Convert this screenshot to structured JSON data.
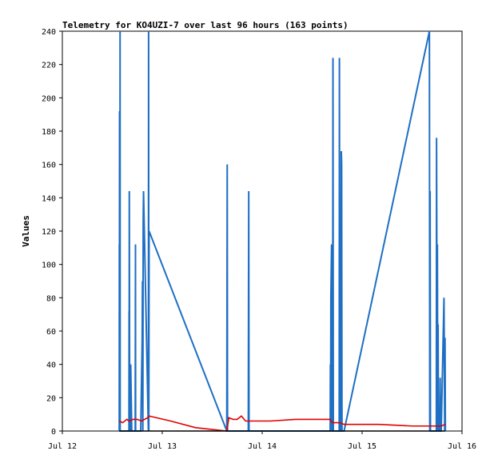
{
  "chart_data": {
    "type": "line",
    "title": "Telemetry for KO4UZI-7 over last 96 hours (163 points)",
    "xlabel": "",
    "ylabel": "Values",
    "xlim": [
      "Jul 12",
      "Jul 16"
    ],
    "ylim": [
      0,
      240
    ],
    "x_ticks": [
      "Jul 12",
      "Jul 13",
      "Jul 14",
      "Jul 15",
      "Jul 16"
    ],
    "y_ticks": [
      0,
      20,
      40,
      60,
      80,
      100,
      120,
      140,
      160,
      180,
      200,
      220,
      240
    ],
    "grid": false,
    "series": [
      {
        "color": "#1f6fc4",
        "x": [
          "2024-07-12T13:40",
          "2024-07-12T13:41",
          "2024-07-12T13:42",
          "2024-07-12T13:44",
          "2024-07-12T13:45",
          "2024-07-12T13:48",
          "2024-07-12T13:49",
          "2024-07-12T13:52",
          "2024-07-12T13:53",
          "2024-07-12T13:55",
          "2024-07-12T16:00",
          "2024-07-12T16:02",
          "2024-07-12T16:03",
          "2024-07-12T16:05",
          "2024-07-12T16:10",
          "2024-07-12T16:20",
          "2024-07-12T16:25",
          "2024-07-12T16:40",
          "2024-07-12T17:30",
          "2024-07-12T17:34",
          "2024-07-12T17:36",
          "2024-07-12T17:40",
          "2024-07-12T18:50",
          "2024-07-12T19:10",
          "2024-07-12T19:15",
          "2024-07-12T19:20",
          "2024-07-12T19:25",
          "2024-07-12T19:30",
          "2024-07-12T20:40",
          "2024-07-12T20:43",
          "2024-07-12T20:46",
          "2024-07-12T20:50",
          "2024-07-13T15:30",
          "2024-07-13T15:33",
          "2024-07-13T15:36",
          "2024-07-13T15:40",
          "2024-07-13T20:40",
          "2024-07-13T20:43",
          "2024-07-13T20:46",
          "2024-07-13T20:50",
          "2024-07-14T16:20",
          "2024-07-14T16:23",
          "2024-07-14T16:26",
          "2024-07-14T16:30",
          "2024-07-14T16:40",
          "2024-07-14T16:50",
          "2024-07-14T16:55",
          "2024-07-14T17:00",
          "2024-07-14T17:05",
          "2024-07-14T17:10",
          "2024-07-14T18:30",
          "2024-07-14T18:33",
          "2024-07-14T18:36",
          "2024-07-14T18:40",
          "2024-07-14T18:55",
          "2024-07-14T19:00",
          "2024-07-14T19:05",
          "2024-07-14T19:10",
          "2024-07-14T19:15",
          "2024-07-14T19:20",
          "2024-07-14T19:25",
          "2024-07-14T19:40",
          "2024-07-15T16:10",
          "2024-07-15T16:15",
          "2024-07-15T16:20",
          "2024-07-15T16:25",
          "2024-07-15T16:30",
          "2024-07-15T16:35",
          "2024-07-15T16:40",
          "2024-07-15T17:50",
          "2024-07-15T17:53",
          "2024-07-15T17:56",
          "2024-07-15T18:00",
          "2024-07-15T18:05",
          "2024-07-15T18:10",
          "2024-07-15T18:15",
          "2024-07-15T18:20",
          "2024-07-15T18:40",
          "2024-07-15T18:45",
          "2024-07-15T18:50",
          "2024-07-15T18:55",
          "2024-07-15T19:00",
          "2024-07-15T19:40",
          "2024-07-15T19:50",
          "2024-07-15T19:55",
          "2024-07-15T20:00"
        ],
        "y": [
          0,
          112,
          0,
          192,
          0,
          120,
          0,
          240,
          0,
          0,
          0,
          72,
          0,
          144,
          0,
          0,
          40,
          0,
          0,
          112,
          0,
          0,
          0,
          54,
          90,
          0,
          126,
          144,
          0,
          240,
          0,
          120,
          0,
          80,
          160,
          0,
          0,
          72,
          144,
          0,
          0,
          40,
          0,
          80,
          112,
          0,
          0,
          224,
          0,
          0,
          0,
          224,
          112,
          0,
          0,
          168,
          160,
          0,
          0,
          0,
          0,
          0,
          240,
          0,
          144,
          0,
          0,
          0,
          0,
          0,
          176,
          120,
          0,
          112,
          0,
          64,
          0,
          0,
          32,
          0,
          0,
          0,
          80,
          0,
          56,
          0
        ]
      },
      {
        "color": "#e00000",
        "x": [
          "2024-07-12T13:40",
          "2024-07-12T14:30",
          "2024-07-12T15:30",
          "2024-07-12T16:00",
          "2024-07-12T17:00",
          "2024-07-12T18:00",
          "2024-07-12T19:00",
          "2024-07-12T20:30",
          "2024-07-12T20:50",
          "2024-07-13T02:00",
          "2024-07-13T08:00",
          "2024-07-13T15:30",
          "2024-07-13T16:00",
          "2024-07-13T17:00",
          "2024-07-13T18:00",
          "2024-07-13T19:00",
          "2024-07-13T20:00",
          "2024-07-13T20:50",
          "2024-07-14T02:00",
          "2024-07-14T08:00",
          "2024-07-14T14:00",
          "2024-07-14T16:20",
          "2024-07-14T16:50",
          "2024-07-14T18:30",
          "2024-07-14T19:40",
          "2024-07-15T04:00",
          "2024-07-15T12:00",
          "2024-07-15T16:10",
          "2024-07-15T17:50",
          "2024-07-15T19:00",
          "2024-07-15T20:00"
        ],
        "y": [
          6,
          5,
          7,
          6,
          7,
          7,
          6,
          8,
          9,
          6,
          2,
          0,
          8,
          7,
          7,
          9,
          6,
          6,
          6,
          7,
          7,
          7,
          5,
          5,
          4,
          4,
          3,
          3,
          3,
          3,
          4
        ]
      },
      {
        "color": "#000000",
        "x": [
          "2024-07-12T13:40",
          "2024-07-15T20:00"
        ],
        "y": [
          0,
          0
        ]
      }
    ]
  }
}
